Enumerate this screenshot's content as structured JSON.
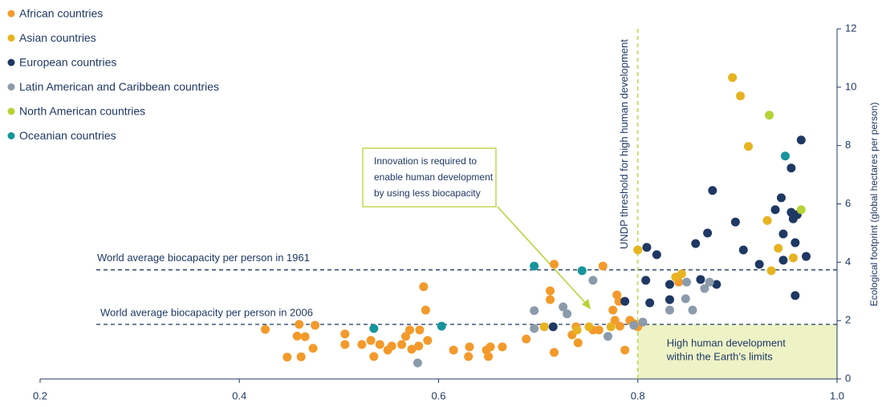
{
  "chart_data": {
    "type": "scatter",
    "xlim": [
      0.2,
      1.0
    ],
    "xticks": [
      {
        "value": 0.2,
        "label": "0.2"
      },
      {
        "value": 0.4,
        "label": "0.4"
      },
      {
        "value": 0.6,
        "label": "0.6"
      },
      {
        "value": 0.8,
        "label": "0.8"
      },
      {
        "value": 1.0,
        "label": "1.0"
      }
    ],
    "ylim": [
      0,
      12
    ],
    "yticks": [
      0,
      2,
      4,
      6,
      8,
      10,
      12
    ],
    "y_label": "Ecological footprint (global hectares per person)",
    "legend": "top-left",
    "reference_lines": [
      {
        "label": "World average biocapacity per person in 1961",
        "value": 3.74,
        "color": "#1f3864"
      },
      {
        "label": "World average biocapacity per person in 2006",
        "value": 1.87,
        "color": "#1f3864"
      }
    ],
    "threshold": {
      "label": "UNDP threshold for high human development",
      "value": 0.8,
      "color": "#b5d334"
    },
    "region_label": [
      "High human development",
      "within the Earth’s limits"
    ],
    "callout": [
      "Innovation is required to",
      "enable human development",
      "by using less biocapacity"
    ],
    "series": [
      {
        "name": "African countries",
        "color": "#f39a2b",
        "x": [
          0.426,
          0.448,
          0.46,
          0.458,
          0.462,
          0.476,
          0.474,
          0.466,
          0.506,
          0.506,
          0.523,
          0.532,
          0.535,
          0.541,
          0.549,
          0.553,
          0.563,
          0.567,
          0.571,
          0.581,
          0.573,
          0.58,
          0.585,
          0.587,
          0.589,
          0.615,
          0.631,
          0.63,
          0.648,
          0.652,
          0.65,
          0.664,
          0.688,
          0.716,
          0.712,
          0.712,
          0.716,
          0.734,
          0.74,
          0.738,
          0.755,
          0.761,
          0.765,
          0.777,
          0.787,
          0.792,
          0.796,
          0.8,
          0.779,
          0.781,
          0.782,
          0.775,
          0.841
        ],
        "values": [
          1.7,
          0.75,
          1.87,
          1.47,
          0.76,
          1.84,
          1.05,
          1.45,
          1.54,
          1.18,
          1.18,
          1.32,
          0.77,
          1.18,
          0.99,
          1.13,
          1.18,
          1.46,
          1.68,
          1.68,
          1.02,
          1.13,
          3.16,
          2.36,
          1.32,
          0.99,
          1.1,
          0.77,
          0.99,
          1.1,
          0.77,
          1.1,
          1.37,
          3.93,
          3.02,
          2.72,
          0.91,
          1.51,
          1.24,
          1.79,
          1.68,
          1.68,
          3.87,
          2.01,
          0.99,
          2.01,
          1.9,
          1.79,
          2.88,
          2.66,
          1.81,
          2.36,
          3.32
        ]
      },
      {
        "name": "Asian countries",
        "color": "#e8b321",
        "x": [
          0.895,
          0.903,
          0.911,
          0.93,
          0.941,
          0.934,
          0.956,
          0.8,
          0.838,
          0.844,
          0.751,
          0.773,
          0.706,
          0.739
        ],
        "values": [
          10.33,
          9.7,
          7.97,
          5.43,
          4.48,
          3.71,
          4.15,
          4.42,
          3.49,
          3.6,
          1.79,
          1.79,
          1.79,
          1.68
        ]
      },
      {
        "name": "European countries",
        "color": "#1f3864",
        "x": [
          0.809,
          0.819,
          0.808,
          0.812,
          0.787,
          0.832,
          0.832,
          0.858,
          0.87,
          0.875,
          0.863,
          0.879,
          0.898,
          0.906,
          0.922,
          0.938,
          0.944,
          0.946,
          0.954,
          0.954,
          0.956,
          0.96,
          0.964,
          0.958,
          0.946,
          0.969,
          0.958,
          0.715
        ],
        "values": [
          4.51,
          4.26,
          3.38,
          2.61,
          2.66,
          3.24,
          2.72,
          4.64,
          5.0,
          6.46,
          3.41,
          3.24,
          5.38,
          4.42,
          3.93,
          5.8,
          6.21,
          4.97,
          5.71,
          7.23,
          5.49,
          5.63,
          8.19,
          4.67,
          4.07,
          4.2,
          2.86,
          1.79
        ]
      },
      {
        "name": "Latin American and Caribbean countries",
        "color": "#8c9bab",
        "x": [
          0.696,
          0.696,
          0.725,
          0.729,
          0.755,
          0.77,
          0.796,
          0.805,
          0.832,
          0.849,
          0.848,
          0.855,
          0.867,
          0.872,
          0.579
        ],
        "values": [
          2.34,
          1.73,
          2.47,
          2.23,
          3.38,
          1.46,
          1.84,
          1.95,
          2.36,
          3.32,
          2.75,
          2.36,
          3.1,
          3.32,
          0.55
        ]
      },
      {
        "name": "North American countries",
        "color": "#b5d334",
        "x": [
          0.932,
          0.964
        ],
        "values": [
          9.04,
          5.8
        ]
      },
      {
        "name": "Oceanian countries",
        "color": "#17959b",
        "x": [
          0.696,
          0.744,
          0.535,
          0.603,
          0.948
        ],
        "values": [
          3.87,
          3.71,
          1.73,
          1.81,
          7.64
        ]
      }
    ]
  }
}
